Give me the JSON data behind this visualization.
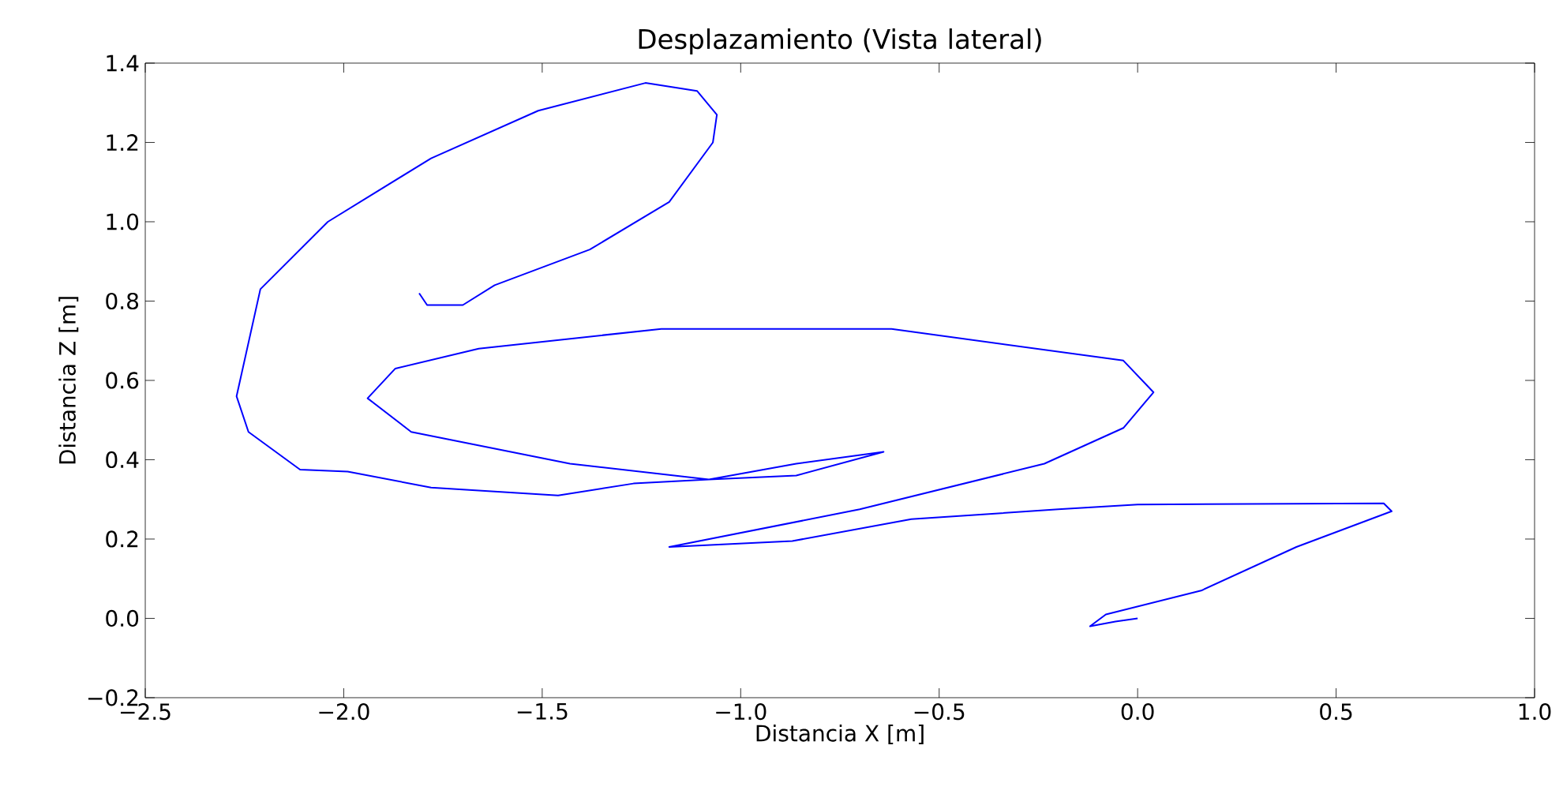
{
  "chart_data": {
    "type": "line",
    "title": "Desplazamiento (Vista lateral)",
    "xlabel": "Distancia X [m]",
    "ylabel": "Distancia Z [m]",
    "xlim": [
      -2.5,
      1.0
    ],
    "ylim": [
      -0.2,
      1.4
    ],
    "xticks": [
      {
        "value": -2.5,
        "label": "−2.5"
      },
      {
        "value": -2.0,
        "label": "−2.0"
      },
      {
        "value": -1.5,
        "label": "−1.5"
      },
      {
        "value": -1.0,
        "label": "−1.0"
      },
      {
        "value": -0.5,
        "label": "−0.5"
      },
      {
        "value": 0,
        "label": "0.0"
      },
      {
        "value": 0.5,
        "label": "0.5"
      },
      {
        "value": 1.0,
        "label": "1.0"
      }
    ],
    "yticks": [
      {
        "value": -0.2,
        "label": "−0.2"
      },
      {
        "value": 0,
        "label": "0.0"
      },
      {
        "value": 0.2,
        "label": "0.2"
      },
      {
        "value": 0.4,
        "label": "0.4"
      },
      {
        "value": 0.6,
        "label": "0.6"
      },
      {
        "value": 0.8,
        "label": "0.8"
      },
      {
        "value": 1.0,
        "label": "1.0"
      },
      {
        "value": 1.2,
        "label": "1.2"
      },
      {
        "value": 1.4,
        "label": "1.4"
      }
    ],
    "grid": false,
    "marker": "none",
    "line_style": "solid",
    "series": [
      {
        "color": "#0000ff",
        "x": [
          0,
          -0.056,
          -0.12,
          -0.08,
          0.16,
          0.4,
          0.64,
          0.62,
          0,
          -0.2,
          -0.57,
          -0.87,
          -1.18,
          -0.7,
          -0.235,
          -0.036,
          0.04,
          -0.036,
          -0.62,
          -1.2,
          -1.66,
          -1.87,
          -1.94,
          -1.83,
          -1.43,
          -1.08,
          -0.86,
          -0.64,
          -0.86,
          -1.08,
          -1.27,
          -1.46,
          -1.78,
          -1.99,
          -2.11,
          -2.24,
          -2.27,
          -2.21,
          -2.04,
          -1.78,
          -1.51,
          -1.24,
          -1.11,
          -1.06,
          -1.07,
          -1.18,
          -1.38,
          -1.62,
          -1.7,
          -1.79,
          -1.81
        ],
        "values": [
          0,
          -0.008,
          -0.02,
          0.01,
          0.07,
          0.18,
          0.27,
          0.29,
          0.287,
          0.275,
          0.25,
          0.195,
          0.18,
          0.275,
          0.39,
          0.48,
          0.57,
          0.65,
          0.73,
          0.73,
          0.68,
          0.63,
          0.555,
          0.47,
          0.39,
          0.35,
          0.39,
          0.42,
          0.36,
          0.35,
          0.34,
          0.31,
          0.33,
          0.37,
          0.375,
          0.47,
          0.56,
          0.83,
          1.0,
          1.16,
          1.28,
          1.35,
          1.33,
          1.27,
          1.2,
          1.05,
          0.93,
          0.84,
          0.79,
          0.79,
          0.82
        ]
      }
    ]
  }
}
